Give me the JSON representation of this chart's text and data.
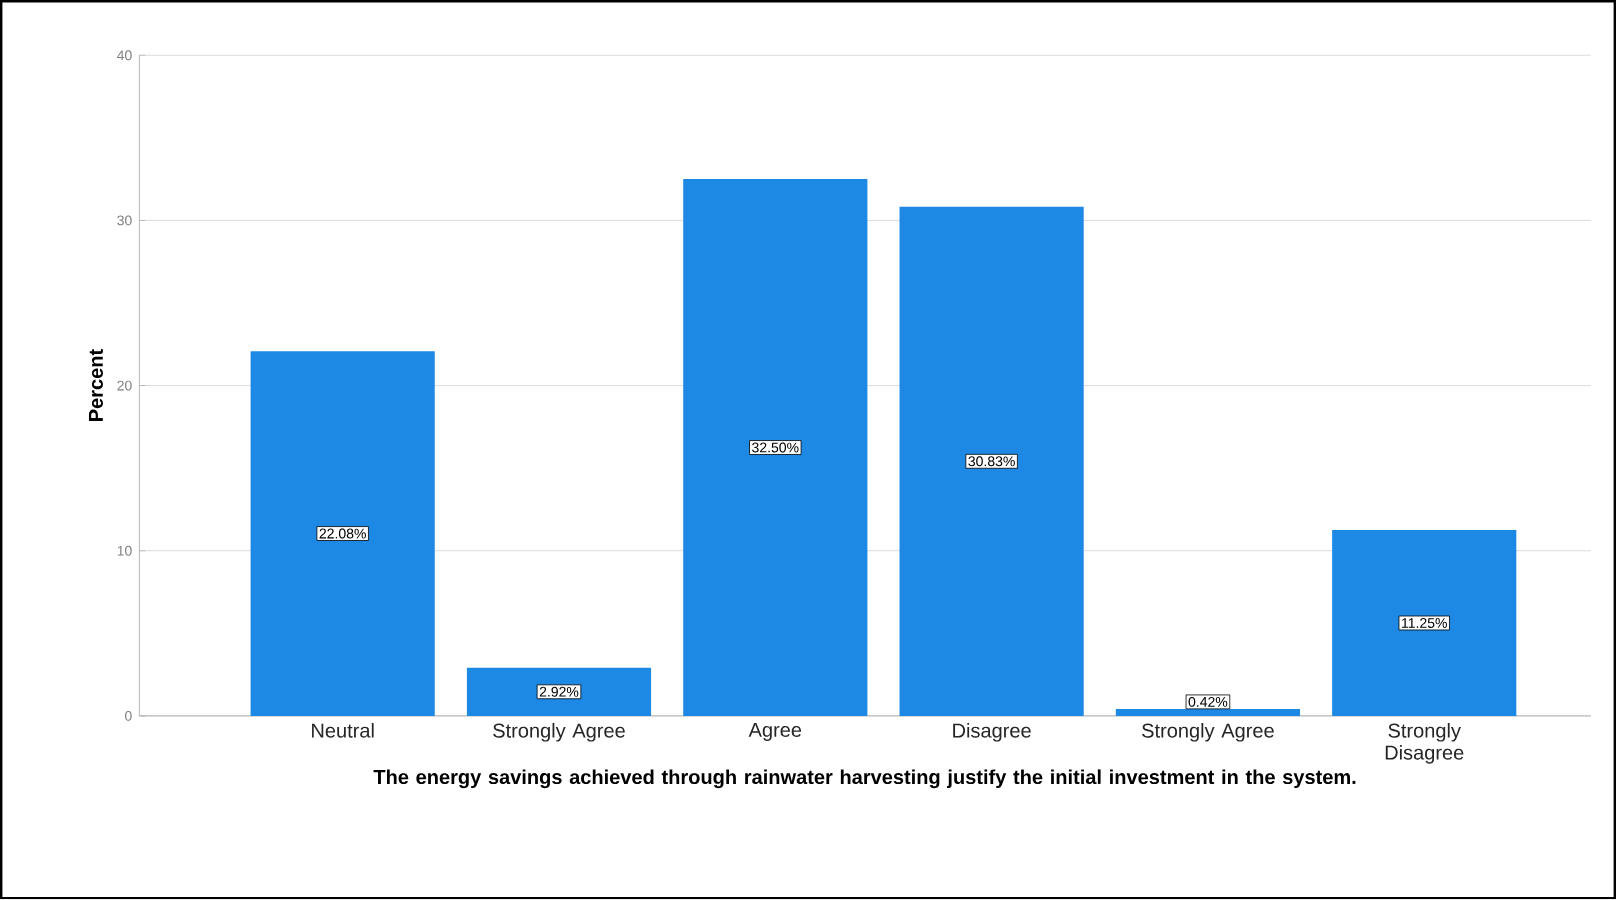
{
  "chart_data": {
    "type": "bar",
    "xlabel": "The energy savings achieved through rainwater harvesting justify the initial investment in the system.",
    "ylabel": "Percent",
    "categories": [
      "Neutral",
      "Strongly Agree",
      "Agree",
      "Disagree",
      "Strongly Agree",
      "Strongly Disagree"
    ],
    "values": [
      22.08,
      2.92,
      32.5,
      30.83,
      0.42,
      11.25
    ],
    "value_labels": [
      "22.08%",
      "2.92%",
      "32.50%",
      "30.83%",
      "0.42%",
      "11.25%"
    ],
    "color": "#1e88e5",
    "ylim": [
      0,
      40
    ],
    "yticks": [
      0,
      10,
      20,
      30,
      40
    ],
    "grid": "y"
  }
}
